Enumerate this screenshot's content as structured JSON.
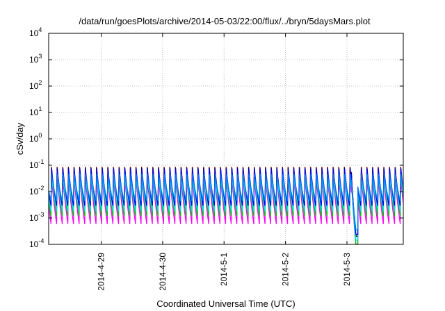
{
  "chart_data": {
    "type": "line",
    "title": "/data/run/goesPlots/archive/2014-05-03/22:00/flux/../bryn/5daysMars.plot",
    "xlabel": "Coordinated Universal Time (UTC)",
    "ylabel": "cSv/day",
    "yscale": "log",
    "ylim": [
      0.0001,
      10000
    ],
    "xlim": [
      "2014-04-28T03:30",
      "2014-05-03T22:00"
    ],
    "grid": true,
    "legend": "none",
    "x_ticks": [
      {
        "label": "2014-4-29",
        "t": "2014-04-29T00:00"
      },
      {
        "label": "2014-4-30",
        "t": "2014-04-30T00:00"
      },
      {
        "label": "2014-5-1",
        "t": "2014-05-01T00:00"
      },
      {
        "label": "2014-5-2",
        "t": "2014-05-02T00:00"
      },
      {
        "label": "2014-5-3",
        "t": "2014-05-03T00:00"
      }
    ],
    "y_ticks": [
      {
        "base": "10",
        "exp": "-4",
        "value": 0.0001
      },
      {
        "base": "10",
        "exp": "-3",
        "value": 0.001
      },
      {
        "base": "10",
        "exp": "-2",
        "value": 0.01
      },
      {
        "base": "10",
        "exp": "-1",
        "value": 0.1
      },
      {
        "base": "10",
        "exp": "0",
        "value": 1
      },
      {
        "base": "10",
        "exp": "1",
        "value": 10
      },
      {
        "base": "10",
        "exp": "2",
        "value": 100
      },
      {
        "base": "10",
        "exp": "3",
        "value": 1000
      },
      {
        "base": "10",
        "exp": "4",
        "value": 10000
      }
    ],
    "sawtooth_period_hours": 2.2,
    "sawtooth_peak_time": "2014-05-02T14:00",
    "dropout_start": "2014-05-03T01:45",
    "dropout_min_time": "2014-05-03T03:30",
    "dropout_end": "2014-05-03T04:15",
    "series": [
      {
        "color": "#ff00ff",
        "peak": 0.055,
        "trough": 0.0006
      },
      {
        "color": "#ff0000",
        "peak": 0.09,
        "trough": 0.0028
      },
      {
        "color": "#000000",
        "peak": 0.085,
        "trough": 0.0025
      },
      {
        "color": "#00c000",
        "peak": 0.06,
        "trough": 0.0012
      },
      {
        "color": "#00e0e0",
        "peak": 0.05,
        "trough": 0.0018
      },
      {
        "color": "#0000ff",
        "peak": 0.075,
        "trough": 0.003
      },
      {
        "color": "#0080ff",
        "peak": 0.045,
        "trough": 0.0045
      }
    ]
  }
}
